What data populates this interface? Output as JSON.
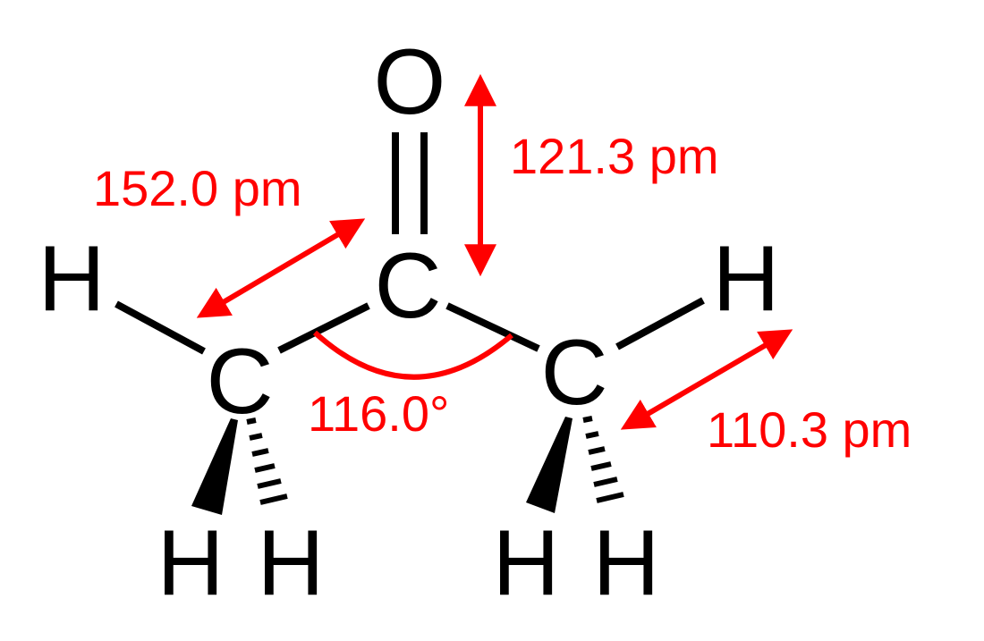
{
  "molecule": {
    "atoms": {
      "oxygen": "O",
      "carbonyl_carbon": "C",
      "methyl_carbon_left": "C",
      "methyl_carbon_right": "C",
      "hydrogen_left": "H",
      "hydrogen_right": "H",
      "hydrogen_left_wedge": "H",
      "hydrogen_left_hash": "H",
      "hydrogen_right_wedge": "H",
      "hydrogen_right_hash": "H"
    }
  },
  "measurements": {
    "cc_bond_length": "152.0 pm",
    "co_bond_length": "121.3 pm",
    "ccc_angle": "116.0°",
    "ch_bond_length": "110.3 pm"
  },
  "colors": {
    "atoms": "#000000",
    "measurements": "#ff0000"
  }
}
